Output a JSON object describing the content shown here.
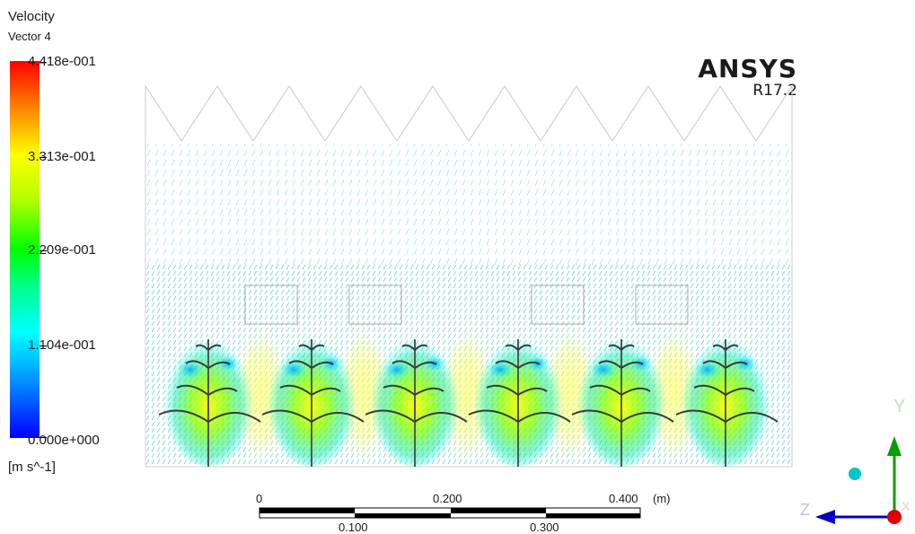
{
  "legend": {
    "title": "Velocity",
    "subtitle": "Vector 4",
    "ticks": [
      "4.418e-001",
      "3.313e-001",
      "2.209e-001",
      "1.104e-001",
      "0.000e+000"
    ],
    "units": "[m s^-1]",
    "color_max": "#ff0000",
    "color_mid": "#00ff00",
    "color_min": "#0000ff"
  },
  "brand": {
    "name": "ANSYS",
    "version": "R17.2"
  },
  "scale": {
    "top_labels": [
      "0",
      "0.200",
      "0.400"
    ],
    "unit": "(m)",
    "bottom_labels": [
      "0.100",
      "0.300"
    ]
  },
  "triad": {
    "y": "Y",
    "z": "Z",
    "x": "X"
  }
}
